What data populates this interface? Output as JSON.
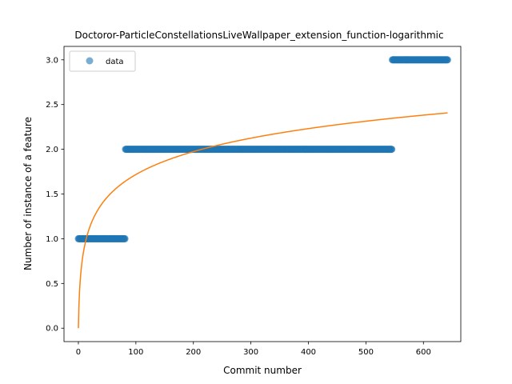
{
  "chart_data": {
    "type": "scatter",
    "title": "Doctoror-ParticleConstellationsLiveWallpaper_extension_function-logarithmic",
    "xlabel": "Commit number",
    "ylabel": "Number of instance of a feature",
    "xlim": [
      -25,
      665
    ],
    "ylim": [
      -0.15,
      3.15
    ],
    "xticks": [
      0,
      100,
      200,
      300,
      400,
      500,
      600
    ],
    "yticks": [
      0.0,
      0.5,
      1.0,
      1.5,
      2.0,
      2.5,
      3.0
    ],
    "legend": {
      "position": "top-left",
      "entries": [
        "data"
      ]
    },
    "grid": false,
    "series": [
      {
        "name": "data",
        "kind": "points",
        "color": "#1f77b4",
        "segments": [
          {
            "x_start": 0,
            "x_end": 81,
            "y": 1
          },
          {
            "x_start": 82,
            "x_end": 545,
            "y": 2
          },
          {
            "x_start": 546,
            "x_end": 642,
            "y": 3
          }
        ]
      },
      {
        "kind": "line",
        "color": "#ff7f0e",
        "fit": {
          "form": "a*ln(x+1)",
          "a": 0.3722,
          "x_range": [
            0,
            642
          ]
        }
      }
    ]
  }
}
